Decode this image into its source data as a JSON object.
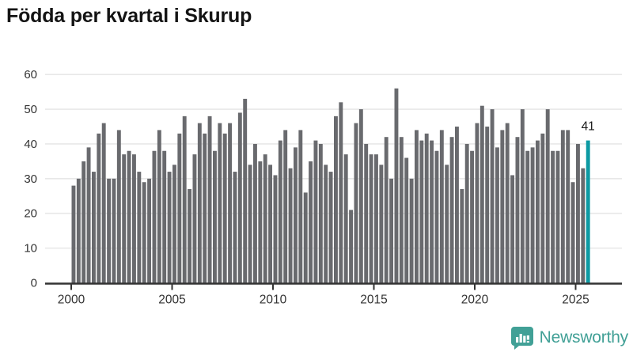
{
  "title": "Födda per kvartal i Skurup",
  "logo": {
    "text": "Newsworthy",
    "icon": "speech-bubble-bar-chart"
  },
  "colors": {
    "bar": "#696a6e",
    "highlight_bar": "#0d9aa3",
    "grid": "#e8e8e8",
    "axis": "#333333",
    "tick_text": "#333333",
    "title_text": "#141414",
    "annotation_text": "#1a1a1a",
    "logo": "#41a096",
    "background": "#ffffff"
  },
  "chart_data": {
    "type": "bar",
    "title": "Födda per kvartal i Skurup",
    "xlabel": "",
    "ylabel": "",
    "x_start": "2000 Q1",
    "x_end": "2025 Q3",
    "x_tick_labels": [
      "2000",
      "2005",
      "2010",
      "2015",
      "2020",
      "2025"
    ],
    "y_ticks": [
      0,
      10,
      20,
      30,
      40,
      50,
      60
    ],
    "ylim": [
      0,
      60
    ],
    "grid": "horizontal",
    "legend": "none",
    "series_name": "Födda per kvartal",
    "values": [
      28,
      30,
      35,
      39,
      32,
      43,
      46,
      30,
      30,
      44,
      37,
      38,
      37,
      32,
      29,
      30,
      38,
      44,
      38,
      32,
      34,
      43,
      48,
      27,
      37,
      46,
      43,
      48,
      38,
      46,
      43,
      46,
      32,
      49,
      53,
      34,
      40,
      35,
      37,
      34,
      31,
      41,
      44,
      33,
      39,
      44,
      26,
      35,
      41,
      40,
      34,
      32,
      48,
      52,
      37,
      21,
      46,
      50,
      40,
      37,
      37,
      34,
      42,
      30,
      56,
      42,
      36,
      30,
      44,
      41,
      43,
      41,
      38,
      44,
      34,
      42,
      45,
      27,
      40,
      38,
      46,
      51,
      45,
      50,
      39,
      44,
      46,
      31,
      42,
      50,
      38,
      39,
      41,
      43,
      50,
      38,
      38,
      44,
      44,
      29,
      40,
      33,
      41
    ],
    "highlight": {
      "index": 102,
      "value": 41,
      "label": "41",
      "quarter": "2025 Q3"
    }
  }
}
